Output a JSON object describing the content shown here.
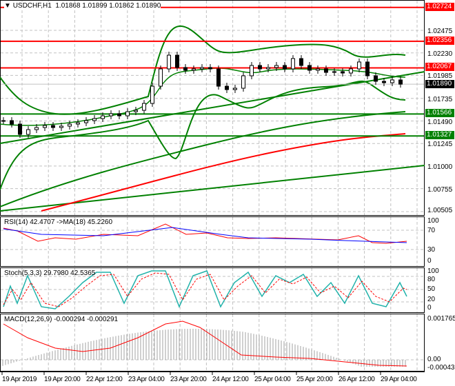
{
  "header": {
    "symbol": "USDCHF,H1",
    "ohlc": "1.01868 1.01899 1.01862 1.01890"
  },
  "price_axis": {
    "ticks": [
      "1.02475",
      "1.02230",
      "1.01985",
      "1.01735",
      "1.01490",
      "1.01245",
      "1.01000",
      "1.00755",
      "1.00505"
    ],
    "current": "1.01890"
  },
  "levels": [
    {
      "price": "1.02724",
      "color": "#ff0000"
    },
    {
      "price": "1.02356",
      "color": "#ff0000"
    },
    {
      "price": "1.02067",
      "color": "#ff0000"
    },
    {
      "price": "1.01566",
      "color": "#008000"
    },
    {
      "price": "1.01327",
      "color": "#008000"
    }
  ],
  "rsi": {
    "title": "RSI(14) 42.4707  ->MA(18) 45.2260",
    "ticks": [
      "100",
      "70",
      "30",
      "0"
    ]
  },
  "stoch": {
    "title": "Stoch(5,3,3) 29.7980 42.5365",
    "ticks": [
      "100",
      "80",
      "50",
      "20",
      "0"
    ]
  },
  "macd": {
    "title": "MACD(12,26,9) -0.000294 -0.000291",
    "ticks": [
      "0.001765",
      "0.00",
      "-0.00043"
    ]
  },
  "time_axis": [
    "19 Apr 2019",
    "19 Apr 20:00",
    "22 Apr 12:00",
    "23 Apr 04:00",
    "23 Apr 20:00",
    "24 Apr 12:00",
    "25 Apr 04:00",
    "25 Apr 20:00",
    "26 Apr 12:00",
    "29 Apr 04:00"
  ],
  "chart_data": {
    "type": "candlestick",
    "symbol": "USDCHF",
    "timeframe": "H1",
    "ylim": [
      1.00505,
      1.02724
    ],
    "closes": [
      1.01494,
      1.01456,
      1.01344,
      1.01396,
      1.01419,
      1.01441,
      1.01419,
      1.01434,
      1.01456,
      1.01471,
      1.01494,
      1.01516,
      1.01546,
      1.01569,
      1.01546,
      1.01591,
      1.01606,
      1.01681,
      1.01868,
      1.02056,
      1.02205,
      1.02071,
      1.02041,
      1.02056,
      1.02071,
      1.02056,
      1.01868,
      1.01831,
      1.01846,
      1.01981,
      1.02093,
      1.02056,
      1.02071,
      1.02093,
      1.02056,
      1.02168,
      1.02093,
      1.02041,
      1.02056,
      1.02018,
      1.02026,
      1.02011,
      1.02056,
      1.02131,
      1.01981,
      1.01921,
      1.01906,
      1.01936,
      1.0189
    ]
  }
}
